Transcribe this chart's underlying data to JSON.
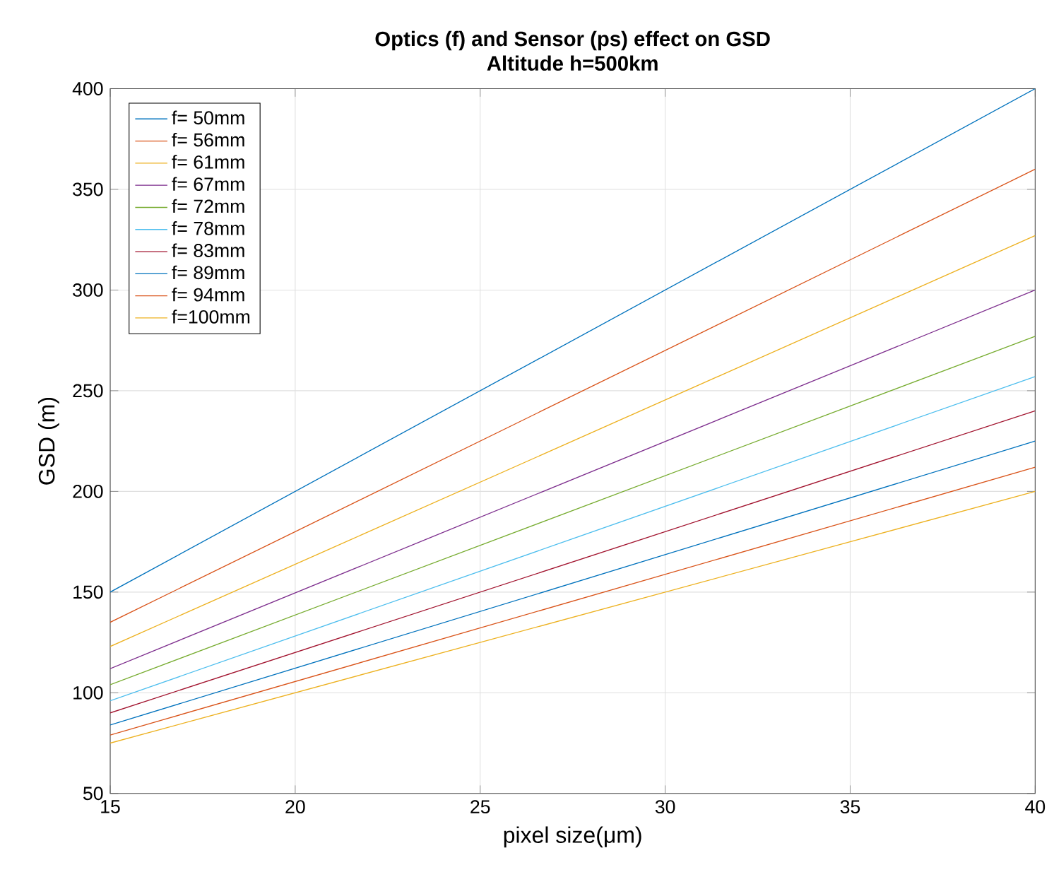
{
  "chart_data": {
    "type": "line",
    "title": "Optics (f) and Sensor (ps) effect on GSD",
    "subtitle": "Altitude h=500km",
    "xlabel": "pixel size(μm)",
    "ylabel": "GSD (m)",
    "x": [
      15,
      40
    ],
    "series": [
      {
        "name": "f= 50mm",
        "color": "#0072bd",
        "values": [
          150,
          400
        ]
      },
      {
        "name": "f= 56mm",
        "color": "#d95319",
        "values": [
          135,
          360
        ]
      },
      {
        "name": "f= 61mm",
        "color": "#edb120",
        "values": [
          123,
          327
        ]
      },
      {
        "name": "f= 67mm",
        "color": "#7e2f8e",
        "values": [
          112,
          300
        ]
      },
      {
        "name": "f= 72mm",
        "color": "#77ac30",
        "values": [
          104,
          277
        ]
      },
      {
        "name": "f= 78mm",
        "color": "#4dbeee",
        "values": [
          96,
          257
        ]
      },
      {
        "name": "f= 83mm",
        "color": "#a2142f",
        "values": [
          90,
          240
        ]
      },
      {
        "name": "f= 89mm",
        "color": "#0072bd",
        "values": [
          84,
          225
        ]
      },
      {
        "name": "f= 94mm",
        "color": "#d95319",
        "values": [
          79,
          212
        ]
      },
      {
        "name": "f=100mm",
        "color": "#edb120",
        "values": [
          75,
          200
        ]
      }
    ],
    "xlim": [
      15,
      40
    ],
    "ylim": [
      50,
      400
    ],
    "xticks": [
      15,
      20,
      25,
      30,
      35,
      40
    ],
    "yticks": [
      50,
      100,
      150,
      200,
      250,
      300,
      350,
      400
    ],
    "grid": true,
    "legend": "top left",
    "marker": "none",
    "line_style": "solid"
  }
}
